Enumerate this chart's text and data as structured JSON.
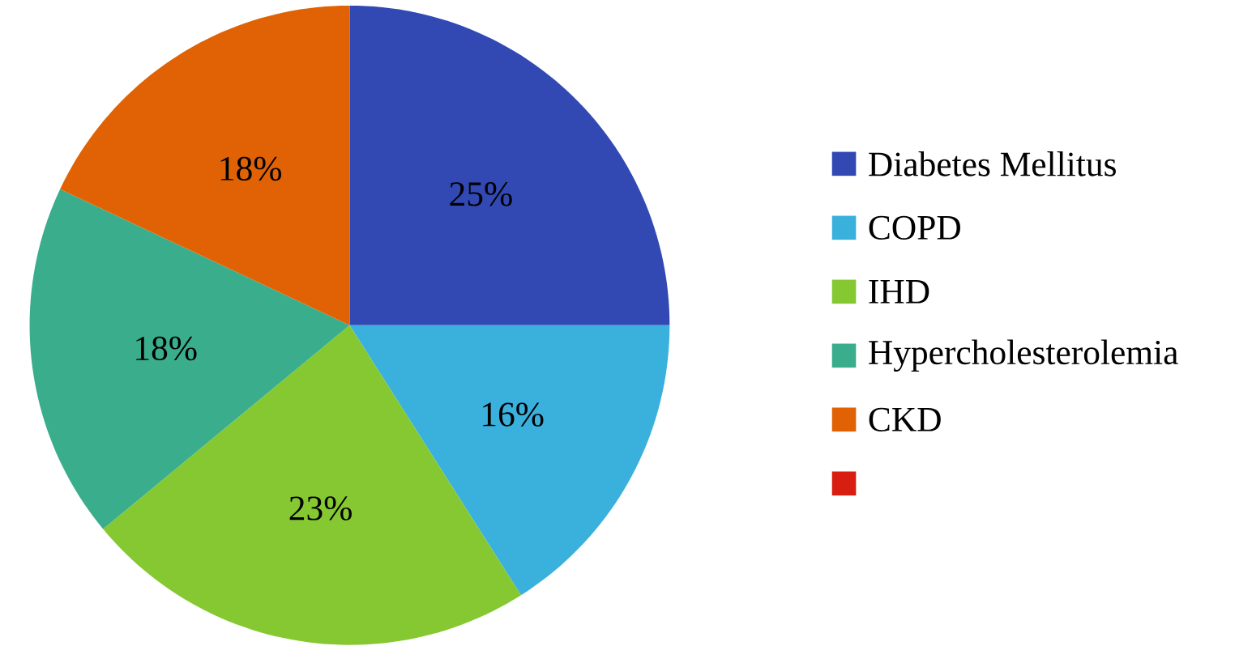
{
  "chart_data": {
    "type": "pie",
    "categories": [
      "Diabetes Mellitus",
      "COPD",
      "IHD",
      "Hypercholesterolemia",
      "CKD",
      null
    ],
    "values": [
      25,
      16,
      23,
      18,
      18,
      0
    ],
    "colors": [
      "#3249b4",
      "#3ab0dd",
      "#86c832",
      "#3aae8c",
      "#e06204",
      "#d81e10"
    ],
    "value_labels": [
      "25%",
      "16%",
      "23%",
      "18%",
      "18%",
      null
    ],
    "legend": "right"
  }
}
